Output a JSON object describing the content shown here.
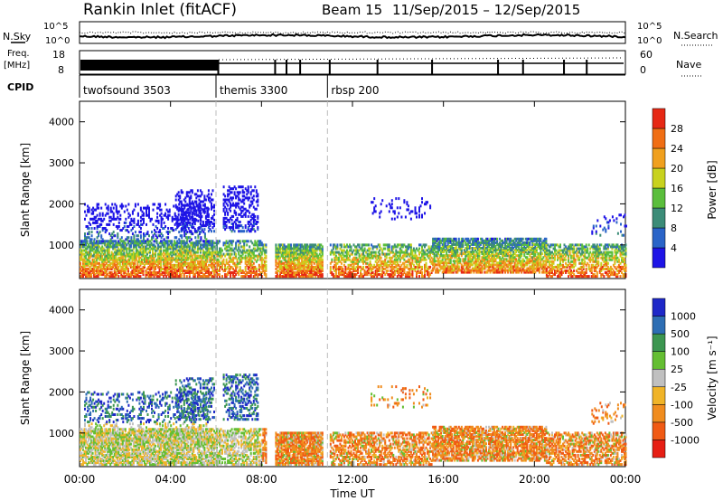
{
  "header": {
    "title": "Rankin Inlet (fitACF)",
    "beam": "Beam 15",
    "dates": "11/Sep/2015 – 12/Sep/2015"
  },
  "top_panels": {
    "nsky_label": "N.Sky",
    "nsearch_label": "N.Search",
    "scale_top": "10^5",
    "scale_bottom": "10^0",
    "freq_label_1": "Freq.",
    "freq_label_2": "[MHz]",
    "freq_top": "18",
    "freq_bottom": "8",
    "nave_label": "Nave",
    "nave_top": "60",
    "nave_bottom": "0",
    "cpid_label": "CPID",
    "cpid_segments": [
      {
        "name": "twofsound 3503",
        "start": 0.0,
        "end": 6.0
      },
      {
        "name": "themis 3300",
        "start": 6.0,
        "end": 10.9
      },
      {
        "name": "rbsp 200",
        "start": 10.9,
        "end": 24.0
      }
    ]
  },
  "axes": {
    "xlabel": "Time UT",
    "x_ticks": [
      "00:00",
      "04:00",
      "08:00",
      "12:00",
      "16:00",
      "20:00",
      "00:00"
    ],
    "ylabel": "Slant Range [km]",
    "y_ticks": [
      "1000",
      "2000",
      "3000",
      "4000"
    ]
  },
  "colorbars": {
    "power": {
      "label": "Power [dB]",
      "ticks": [
        "4",
        "8",
        "12",
        "16",
        "20",
        "24",
        "28"
      ],
      "colors": [
        "#1e14e6",
        "#2a64c8",
        "#3c8c78",
        "#5abe3c",
        "#c8d21e",
        "#f0a01e",
        "#f06e14",
        "#e62814"
      ]
    },
    "velocity": {
      "label": "Velocity [m s⁻¹]",
      "ticks": [
        "1000",
        "500",
        "100",
        "25",
        "-25",
        "-100",
        "-500",
        "-1000"
      ],
      "colors": [
        "#1e28c8",
        "#2d6eb4",
        "#3c9650",
        "#64be32",
        "#c0c0c0",
        "#f0b428",
        "#f08c1e",
        "#f05a14",
        "#e61e14"
      ]
    }
  },
  "chart_data": {
    "type": "heatmap",
    "x_range_hours": [
      0,
      24
    ],
    "y_range_km": [
      180,
      4500
    ],
    "dashed_lines_hours": [
      6.0,
      10.9
    ],
    "scatter_regions": [
      {
        "t0": 0.0,
        "t1": 6.0,
        "r0": 200,
        "r1": 1100,
        "density": 0.75
      },
      {
        "t0": 0.2,
        "t1": 5.6,
        "r0": 1100,
        "r1": 2000,
        "density": 0.25
      },
      {
        "t0": 4.2,
        "t1": 5.9,
        "r0": 1300,
        "r1": 2300,
        "density": 0.3
      },
      {
        "t0": 6.0,
        "t1": 8.2,
        "r0": 200,
        "r1": 1100,
        "density": 0.55
      },
      {
        "t0": 6.3,
        "t1": 7.8,
        "r0": 1300,
        "r1": 2400,
        "density": 0.35
      },
      {
        "t0": 8.6,
        "t1": 10.7,
        "r0": 200,
        "r1": 1000,
        "density": 0.85
      },
      {
        "t0": 11.0,
        "t1": 15.5,
        "r0": 200,
        "r1": 1000,
        "density": 0.55
      },
      {
        "t0": 12.8,
        "t1": 15.4,
        "r0": 1600,
        "r1": 2100,
        "density": 0.12
      },
      {
        "t0": 15.5,
        "t1": 20.5,
        "r0": 300,
        "r1": 1150,
        "density": 0.75
      },
      {
        "t0": 20.5,
        "t1": 24.0,
        "r0": 200,
        "r1": 1000,
        "density": 0.55
      },
      {
        "t0": 22.5,
        "t1": 24.0,
        "r0": 1200,
        "r1": 1700,
        "density": 0.15
      }
    ]
  }
}
